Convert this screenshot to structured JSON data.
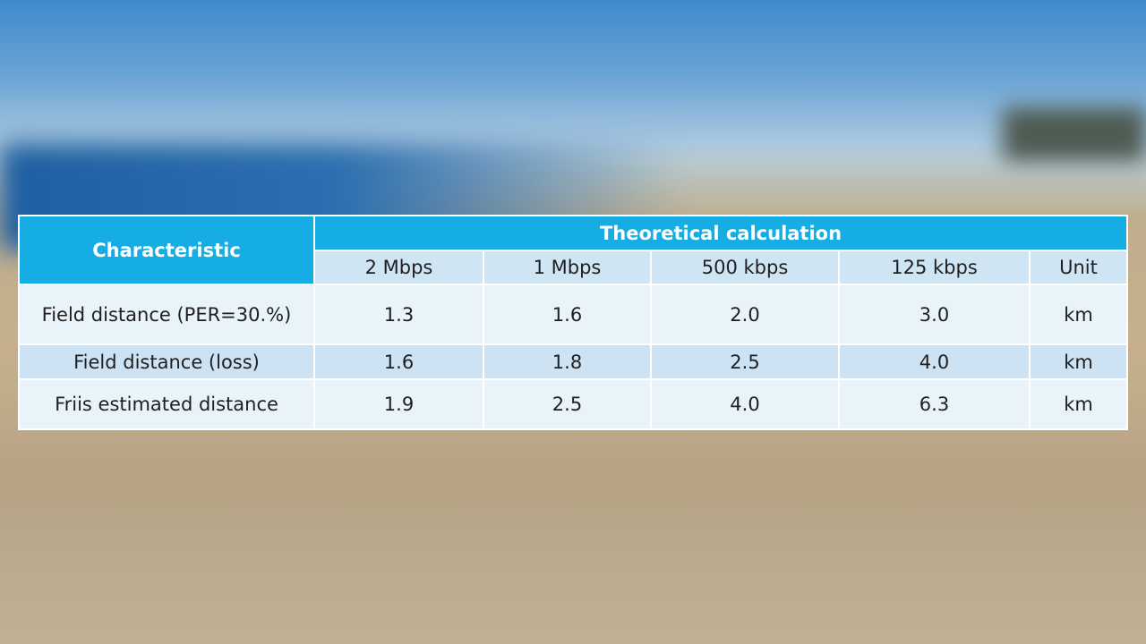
{
  "table": {
    "header": {
      "characteristic": "Characteristic",
      "group": "Theoretical calculation",
      "columns": [
        "2 Mbps",
        "1 Mbps",
        "500 kbps",
        "125 kbps",
        "Unit"
      ]
    },
    "rows": [
      [
        "Field distance (PER=30.%)",
        "1.3",
        "1.6",
        "2.0",
        "3.0",
        "km"
      ],
      [
        "Field distance (loss)",
        "1.6",
        "1.8",
        "2.5",
        "4.0",
        "km"
      ],
      [
        "Friis estimated distance",
        "1.9",
        "2.5",
        "4.0",
        "6.3",
        "km"
      ]
    ]
  }
}
